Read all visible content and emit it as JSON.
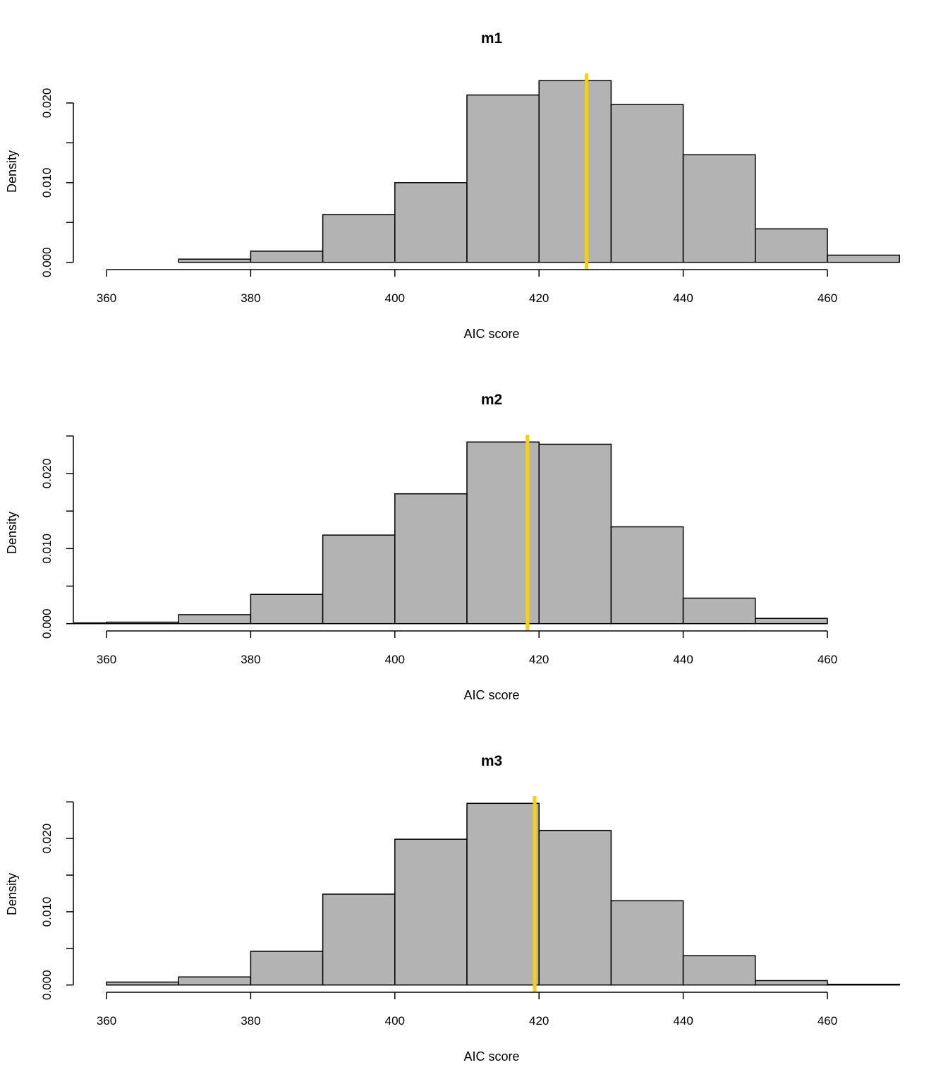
{
  "chart_data": [
    {
      "type": "bar",
      "title": "m1",
      "xlabel": "AIC score",
      "ylabel": "Density",
      "bin_edges": [
        370,
        380,
        390,
        400,
        410,
        420,
        430,
        440,
        450,
        460,
        470
      ],
      "values": [
        0.0004,
        0.0014,
        0.006,
        0.01,
        0.021,
        0.0228,
        0.0198,
        0.0135,
        0.0042,
        0.0009
      ],
      "xticks": [
        360,
        380,
        400,
        420,
        440,
        460
      ],
      "xticks_minor_labels": [
        "360",
        "380",
        "400",
        "420",
        "440",
        "460"
      ],
      "yticks": [
        0,
        0.005,
        0.01,
        0.015,
        0.02
      ],
      "ytick_labels": [
        "0.000",
        "",
        "0.010",
        "",
        "0.020"
      ],
      "vline": 426.6,
      "bar_color": "#b3b3b3",
      "vline_color": "#ffd000"
    },
    {
      "type": "bar",
      "title": "m2",
      "xlabel": "AIC score",
      "ylabel": "Density",
      "bin_edges": [
        350,
        360,
        370,
        380,
        390,
        400,
        410,
        420,
        430,
        440,
        450,
        460
      ],
      "values": [
        0.0001,
        0.0002,
        0.0012,
        0.0039,
        0.0118,
        0.0173,
        0.0242,
        0.0239,
        0.0129,
        0.0034,
        0.0007
      ],
      "xticks": [
        360,
        380,
        400,
        420,
        440,
        460
      ],
      "xticks_minor_labels": [
        "360",
        "380",
        "400",
        "420",
        "440",
        "460"
      ],
      "yticks": [
        0,
        0.005,
        0.01,
        0.015,
        0.02,
        0.025
      ],
      "ytick_labels": [
        "0.000",
        "",
        "0.010",
        "",
        "0.020",
        ""
      ],
      "vline": 418.4,
      "bar_color": "#b3b3b3",
      "vline_color": "#ffd000"
    },
    {
      "type": "bar",
      "title": "m3",
      "xlabel": "AIC score",
      "ylabel": "Density",
      "bin_edges": [
        360,
        370,
        380,
        390,
        400,
        410,
        420,
        430,
        440,
        450,
        460,
        470
      ],
      "values": [
        0.0004,
        0.0011,
        0.0046,
        0.0124,
        0.0199,
        0.0248,
        0.0211,
        0.0115,
        0.004,
        0.0006,
        0.0001
      ],
      "xticks": [
        360,
        380,
        400,
        420,
        440,
        460
      ],
      "xticks_minor_labels": [
        "360",
        "380",
        "400",
        "420",
        "440",
        "460"
      ],
      "yticks": [
        0,
        0.005,
        0.01,
        0.015,
        0.02,
        0.025
      ],
      "ytick_labels": [
        "0.000",
        "",
        "0.010",
        "",
        "0.020",
        ""
      ],
      "vline": 419.4,
      "bar_color": "#b3b3b3",
      "vline_color": "#ffd000"
    }
  ]
}
